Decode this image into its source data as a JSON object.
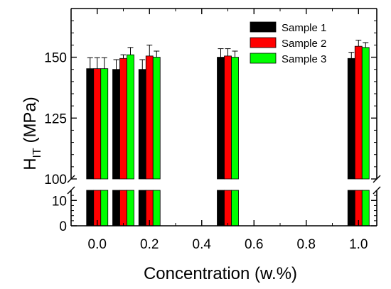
{
  "chart_data": {
    "type": "bar",
    "xlabel": "Concentration (w.%)",
    "ylabel_main": "H",
    "ylabel_sub": "IT",
    "ylabel_unit": " (MPa)",
    "x_ticks": [
      "0.0",
      "0.2",
      "0.4",
      "0.6",
      "0.8",
      "1.0"
    ],
    "x_tick_values": [
      0.0,
      0.2,
      0.4,
      0.6,
      0.8,
      1.0
    ],
    "xlim": [
      -0.1,
      1.07
    ],
    "y_axis_break": true,
    "y_upper_range": [
      100,
      170
    ],
    "y_upper_ticks": [
      "100",
      "125",
      "150"
    ],
    "y_upper_tick_values": [
      100,
      125,
      150
    ],
    "y_lower_range": [
      0,
      14
    ],
    "y_lower_ticks": [
      "0",
      "10"
    ],
    "y_lower_tick_values": [
      0,
      10
    ],
    "x": [
      0.0,
      0.1,
      0.2,
      0.5,
      1.0
    ],
    "series": [
      {
        "name": "Sample 1",
        "color": "#000000",
        "values": [
          145.3,
          145.0,
          145.0,
          150.0,
          149.5
        ],
        "errors": [
          4.5,
          4.0,
          4.0,
          3.5,
          2.5
        ]
      },
      {
        "name": "Sample 2",
        "color": "#ff0000",
        "values": [
          145.3,
          149.5,
          150.5,
          150.5,
          154.5
        ],
        "errors": [
          4.5,
          1.5,
          4.5,
          3.0,
          2.5
        ]
      },
      {
        "name": "Sample 3",
        "color": "#00ff00",
        "values": [
          145.3,
          151.0,
          150.0,
          150.0,
          154.0
        ],
        "errors": [
          4.5,
          3.0,
          2.5,
          2.5,
          2.0
        ]
      }
    ],
    "legend_position": "top-right",
    "grid": false
  }
}
